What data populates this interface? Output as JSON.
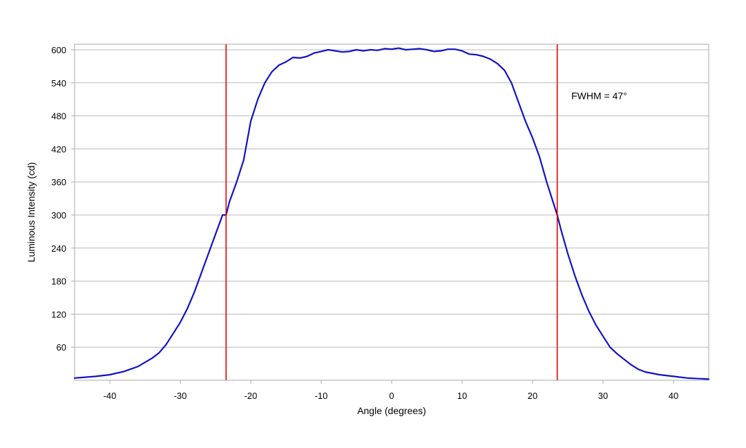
{
  "chart_data": {
    "type": "line",
    "title": "",
    "xlabel": "Angle (degrees)",
    "ylabel": "Luminous Intensity (cd)",
    "xlim": [
      -45,
      45
    ],
    "ylim": [
      0,
      610
    ],
    "x_ticks": [
      -40,
      -30,
      -20,
      -10,
      0,
      10,
      20,
      30,
      40
    ],
    "x_tick_labels": [
      "-40",
      "-30",
      "-20",
      "-10",
      "0",
      "10",
      "20",
      "30",
      "40"
    ],
    "y_ticks": [
      60,
      120,
      180,
      240,
      300,
      360,
      420,
      480,
      540,
      600
    ],
    "y_tick_labels": [
      "60",
      "120",
      "180",
      "240",
      "300",
      "360",
      "420",
      "480",
      "540",
      "600"
    ],
    "grid": "horizontal",
    "legend": "none",
    "series": [
      {
        "color": "#1010c8",
        "x": [
          -45,
          -42,
          -40,
          -38,
          -36,
          -34,
          -33,
          -32,
          -31,
          -30,
          -29,
          -28,
          -27,
          -26,
          -25,
          -24,
          -23.5,
          -23,
          -22,
          -21,
          -20,
          -19,
          -18,
          -17,
          -16,
          -15,
          -14,
          -13,
          -12,
          -11,
          -10,
          -9,
          -8,
          -7,
          -6,
          -5,
          -4,
          -3,
          -2,
          -1,
          0,
          1,
          2,
          3,
          4,
          5,
          6,
          7,
          8,
          9,
          10,
          11,
          12,
          13,
          14,
          15,
          16,
          17,
          18,
          19,
          20,
          21,
          22,
          23,
          23.5,
          24,
          25,
          26,
          27,
          28,
          29,
          30,
          31,
          32,
          33,
          34,
          35,
          36,
          38,
          40,
          42,
          45
        ],
        "y": [
          4,
          7,
          10,
          16,
          25,
          40,
          50,
          65,
          85,
          105,
          130,
          160,
          195,
          230,
          265,
          300,
          300,
          325,
          360,
          400,
          470,
          510,
          540,
          560,
          572,
          578,
          586,
          585,
          588,
          594,
          597,
          600,
          598,
          596,
          597,
          600,
          598,
          600,
          599,
          602,
          601,
          603,
          600,
          601,
          602,
          600,
          597,
          598,
          601,
          601,
          598,
          592,
          591,
          588,
          583,
          575,
          563,
          540,
          505,
          470,
          440,
          405,
          360,
          320,
          300,
          275,
          230,
          190,
          155,
          125,
          100,
          80,
          60,
          48,
          38,
          28,
          20,
          15,
          10,
          7,
          4,
          2
        ]
      }
    ],
    "markers": [
      {
        "axis": "x",
        "value": -23.5,
        "color": "#e00000"
      },
      {
        "axis": "x",
        "value": 23.5,
        "color": "#e00000"
      }
    ],
    "annotations": [
      {
        "text": "FWHM = 47°",
        "x": 25.5,
        "y": 510
      }
    ]
  },
  "colors": {
    "grid": "#b8b8b8",
    "frame": "#a8a8a8",
    "series": "#1010c8",
    "marker": "#e00000"
  }
}
